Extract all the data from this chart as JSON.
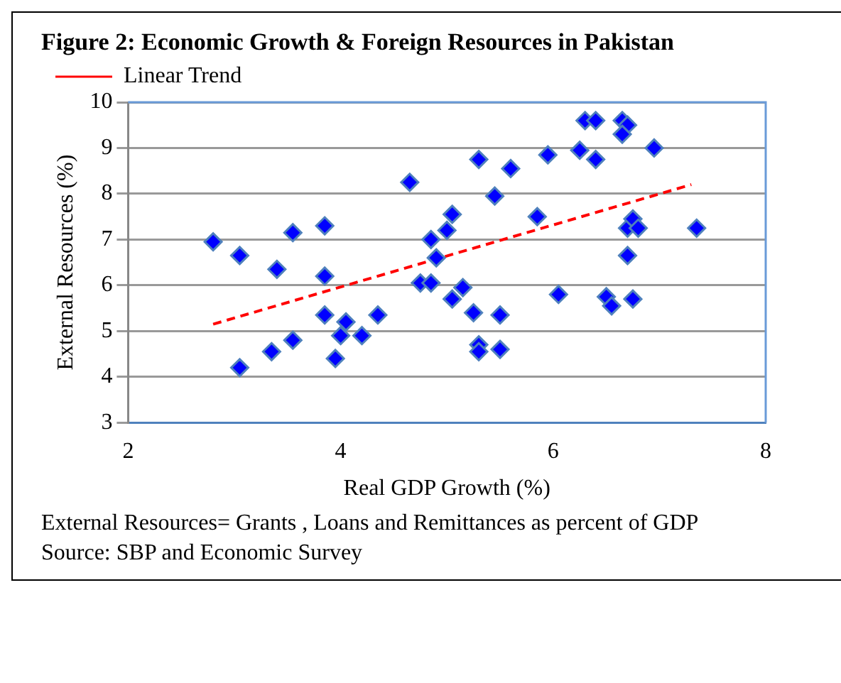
{
  "chart_data": {
    "type": "scatter",
    "title": "Figure 2: Economic  Growth & Foreign Resources in Pakistan",
    "xlabel": "Real GDP Growth (%)",
    "ylabel": "External Resources (%)",
    "annotations": [
      "External Resources= Grants , Loans and Remittances as percent of GDP",
      "Source: SBP and Economic Survey"
    ],
    "marker": "diamond",
    "grid": "y",
    "legend": "top left",
    "xlim": [
      2,
      8
    ],
    "xticks": [
      2,
      4,
      6,
      8
    ],
    "ylim": [
      3,
      10
    ],
    "yticks": [
      3,
      4,
      5,
      6,
      7,
      8,
      9,
      10
    ],
    "series": [
      {
        "color": "#0000ff",
        "x": [
          2.8,
          3.05,
          3.05,
          3.4,
          3.35,
          3.55,
          3.55,
          3.85,
          3.85,
          3.85,
          3.95,
          4.0,
          4.05,
          4.2,
          4.35,
          4.65,
          4.75,
          4.85,
          4.85,
          4.9,
          5.0,
          5.05,
          5.05,
          5.15,
          5.25,
          5.3,
          5.3,
          5.3,
          5.45,
          5.5,
          5.5,
          5.6,
          5.85,
          5.95,
          6.05,
          6.25,
          6.3,
          6.4,
          6.4,
          6.5,
          6.55,
          6.65,
          6.7,
          6.65,
          6.7,
          6.7,
          6.75,
          6.75,
          6.8,
          6.95,
          7.35
        ],
        "values": [
          6.95,
          6.65,
          4.2,
          6.35,
          4.55,
          7.15,
          4.8,
          7.3,
          6.2,
          5.35,
          4.4,
          4.9,
          5.2,
          4.9,
          5.35,
          8.25,
          6.05,
          6.05,
          7.0,
          6.6,
          7.2,
          7.55,
          5.7,
          5.95,
          5.4,
          4.7,
          4.55,
          8.75,
          7.95,
          5.35,
          4.6,
          8.55,
          7.5,
          8.85,
          5.8,
          8.95,
          9.6,
          9.6,
          8.75,
          5.75,
          5.55,
          9.6,
          9.5,
          9.3,
          7.25,
          6.65,
          7.45,
          5.7,
          7.25,
          9.0,
          7.25
        ]
      },
      {
        "type": "line",
        "name": "Linear Trend",
        "color": "#ff0000",
        "line_style": "dashed",
        "marker": "none",
        "x": [
          2.8,
          7.3
        ],
        "values": [
          5.15,
          8.2
        ]
      }
    ]
  }
}
